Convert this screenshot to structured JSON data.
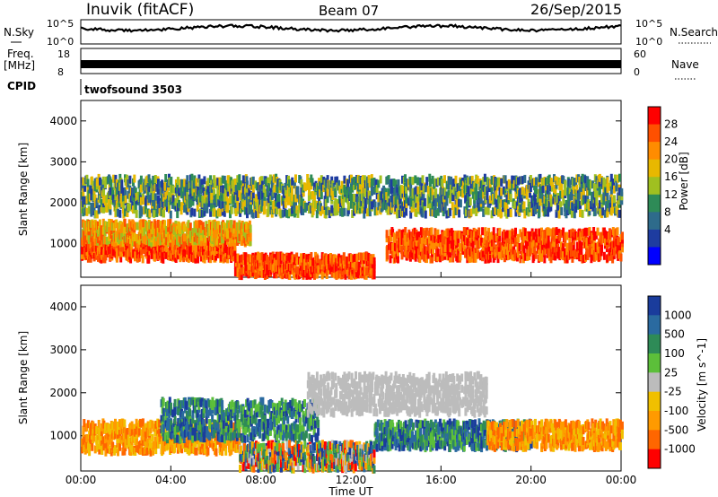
{
  "header": {
    "station": "Inuvik (fitACF)",
    "beam": "Beam 07",
    "date": "26/Sep/2015"
  },
  "noise_panel": {
    "left_label": "N.Sky",
    "right_label": "N.Search",
    "left_ticks": [
      "10^5",
      "10^0"
    ],
    "right_ticks": [
      "10^5",
      "10^0"
    ]
  },
  "freq_panel": {
    "left_label_1": "Freq.",
    "left_label_2": "[MHz]",
    "right_label": "Nave",
    "left_ticks": [
      "18",
      "8"
    ],
    "right_ticks": [
      "60",
      "0"
    ]
  },
  "cpid_panel": {
    "label": "CPID",
    "value": "twofsound 3503"
  },
  "power_colorbar": {
    "title": "Power [dB]",
    "ticks": [
      "28",
      "24",
      "20",
      "16",
      "12",
      "8",
      "4"
    ],
    "colors": [
      "#ff0000",
      "#ff5000",
      "#ff8c00",
      "#e8b800",
      "#a0c020",
      "#2e8b57",
      "#2e6b8b",
      "#1e3ca0",
      "#0000ff"
    ]
  },
  "velocity_colorbar": {
    "title": "Velocity [m s^-1]",
    "ticks": [
      "1000",
      "500",
      "100",
      "25",
      "-25",
      "-100",
      "-500",
      "-1000"
    ],
    "colors": [
      "#1a3c9c",
      "#2a6aa0",
      "#2e8b57",
      "#5cbf3a",
      "#bcbcbc",
      "#f0c000",
      "#ff9a00",
      "#ff6600",
      "#ff0000"
    ]
  },
  "chart_data": [
    {
      "type": "heatmap",
      "panel": "power",
      "ylabel": "Slant Range [km]",
      "ylim": [
        180,
        4500
      ],
      "y_ticks": [
        1000,
        2000,
        3000,
        4000
      ],
      "x_ticks": [
        "00:00",
        "04:00",
        "08:00",
        "12:00",
        "16:00",
        "20:00",
        "00:00"
      ],
      "xlim_hours": [
        0,
        24
      ],
      "bands": [
        {
          "t0": 0.0,
          "t1": 6.8,
          "r0": 600,
          "r1": 1050,
          "level": "high"
        },
        {
          "t0": 0.0,
          "t1": 7.5,
          "r0": 1000,
          "r1": 1500,
          "level": "mid"
        },
        {
          "t0": 6.8,
          "t1": 13.0,
          "r0": 200,
          "r1": 700,
          "level": "high"
        },
        {
          "t0": 13.5,
          "t1": 24.0,
          "r0": 600,
          "r1": 1300,
          "level": "high"
        },
        {
          "t0": 0.0,
          "t1": 24.0,
          "r0": 1700,
          "r1": 2600,
          "level": "low"
        }
      ]
    },
    {
      "type": "heatmap",
      "panel": "velocity",
      "ylabel": "Slant Range [km]",
      "ylim": [
        180,
        4500
      ],
      "y_ticks": [
        1000,
        2000,
        3000,
        4000
      ],
      "x_ticks": [
        "00:00",
        "04:00",
        "08:00",
        "12:00",
        "16:00",
        "20:00",
        "00:00"
      ],
      "xlabel": "Time UT",
      "xlim_hours": [
        0,
        24
      ],
      "bands": [
        {
          "t0": 0.0,
          "t1": 7.0,
          "r0": 600,
          "r1": 1300,
          "level": "neg"
        },
        {
          "t0": 3.5,
          "t1": 10.5,
          "r0": 900,
          "r1": 1800,
          "level": "pos"
        },
        {
          "t0": 7.0,
          "t1": 13.0,
          "r0": 200,
          "r1": 800,
          "level": "mixed"
        },
        {
          "t0": 13.0,
          "t1": 20.0,
          "r0": 700,
          "r1": 1300,
          "level": "pos"
        },
        {
          "t0": 18.0,
          "t1": 24.0,
          "r0": 700,
          "r1": 1300,
          "level": "neg"
        },
        {
          "t0": 10.0,
          "t1": 18.0,
          "r0": 1500,
          "r1": 2400,
          "level": "zero"
        }
      ]
    }
  ]
}
